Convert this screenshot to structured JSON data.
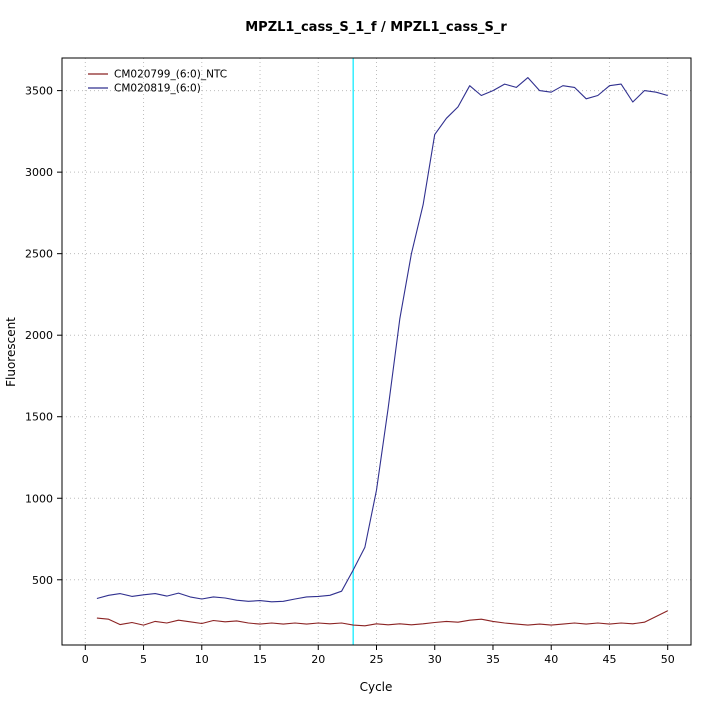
{
  "chart_data": {
    "type": "line",
    "title": "MPZL1_cass_S_1_f / MPZL1_cass_S_r",
    "xlabel": "Cycle",
    "ylabel": "Fluorescent",
    "xlim": [
      -2,
      52
    ],
    "ylim": [
      100,
      3700
    ],
    "x_ticks": [
      0,
      5,
      10,
      15,
      20,
      25,
      30,
      35,
      40,
      45,
      50
    ],
    "y_ticks": [
      500,
      1000,
      1500,
      2000,
      2500,
      3000,
      3500
    ],
    "grid": true,
    "legend_position": "top-left",
    "x": [
      1,
      2,
      3,
      4,
      5,
      6,
      7,
      8,
      9,
      10,
      11,
      12,
      13,
      14,
      15,
      16,
      17,
      18,
      19,
      20,
      21,
      22,
      23,
      24,
      25,
      26,
      27,
      28,
      29,
      30,
      31,
      32,
      33,
      34,
      35,
      36,
      37,
      38,
      39,
      40,
      41,
      42,
      43,
      44,
      45,
      46,
      47,
      48,
      49,
      50
    ],
    "series": [
      {
        "name": "CM020799_(6:0)_NTC",
        "color": "#8b2323",
        "values": [
          265,
          258,
          225,
          238,
          222,
          245,
          235,
          252,
          242,
          232,
          250,
          242,
          248,
          235,
          228,
          235,
          228,
          235,
          228,
          235,
          230,
          235,
          222,
          218,
          230,
          224,
          230,
          224,
          230,
          238,
          245,
          240,
          252,
          258,
          245,
          235,
          228,
          222,
          228,
          222,
          228,
          235,
          228,
          235,
          228,
          235,
          230,
          240,
          275,
          310
        ]
      },
      {
        "name": "CM020819_(6:0)",
        "color": "#30308f",
        "values": [
          385,
          405,
          415,
          398,
          408,
          415,
          400,
          418,
          395,
          382,
          395,
          388,
          375,
          368,
          372,
          365,
          368,
          382,
          395,
          398,
          405,
          430,
          560,
          700,
          1050,
          1550,
          2100,
          2500,
          2800,
          3230,
          3330,
          3400,
          3530,
          3470,
          3500,
          3540,
          3520,
          3580,
          3500,
          3490,
          3530,
          3520,
          3450,
          3470,
          3530,
          3540,
          3430,
          3500,
          3490,
          3470
        ]
      }
    ],
    "threshold_line": {
      "orientation": "vertical",
      "x": 23,
      "color": "#00eaff"
    }
  }
}
